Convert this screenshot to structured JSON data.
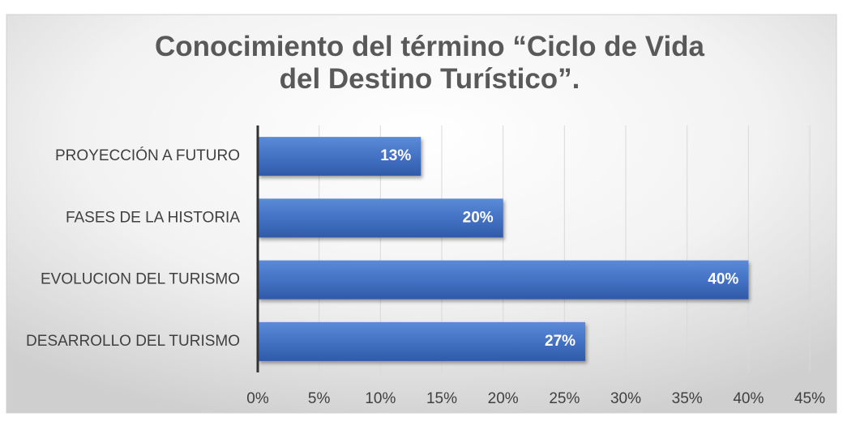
{
  "chart_data": {
    "type": "barh",
    "title": "Conocimiento del término “Ciclo de Vida del Destino Turístico”.",
    "categories": [
      "PROYECCIÓN A FUTURO",
      "FASES DE LA HISTORIA",
      "EVOLUCION DEL TURISMO",
      "DESARROLLO DEL TURISMO"
    ],
    "values": [
      13.3,
      20,
      40,
      26.7
    ],
    "value_labels": [
      "13%",
      "20%",
      "40%",
      "27%"
    ],
    "color": "#4472c4",
    "xlim": [
      0,
      45
    ],
    "xticks": [
      {
        "value": 0,
        "label": "0%"
      },
      {
        "value": 5,
        "label": "5%"
      },
      {
        "value": 10,
        "label": "10%"
      },
      {
        "value": 15,
        "label": "15%"
      },
      {
        "value": 20,
        "label": "20%"
      },
      {
        "value": 25,
        "label": "25%"
      },
      {
        "value": 30,
        "label": "30%"
      },
      {
        "value": 35,
        "label": "35%"
      },
      {
        "value": 40,
        "label": "40%"
      },
      {
        "value": 45,
        "label": "45%"
      }
    ],
    "grid": true
  }
}
